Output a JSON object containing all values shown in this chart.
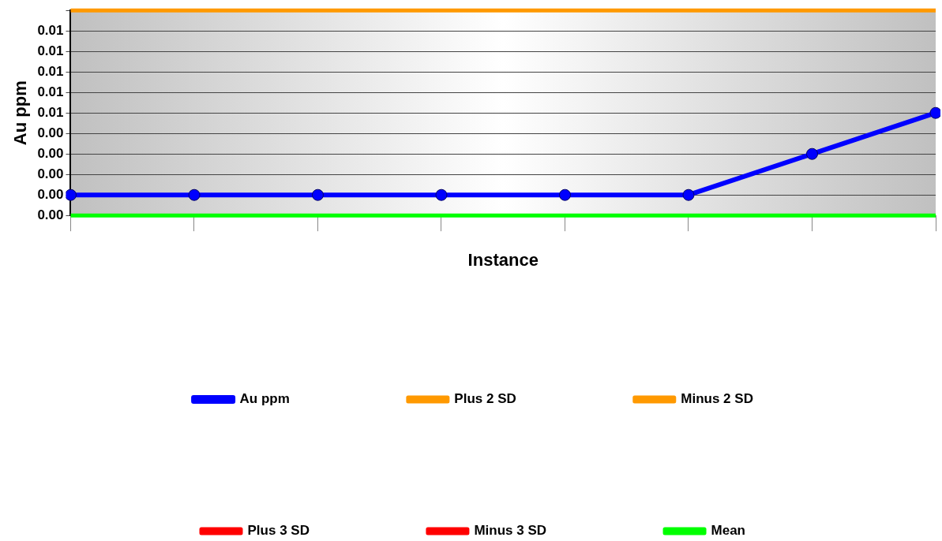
{
  "chart_data": {
    "type": "line",
    "xlabel": "Instance",
    "ylabel": "Au ppm",
    "categories": [
      null,
      null,
      null,
      null,
      null,
      null,
      null,
      null
    ],
    "series": [
      {
        "name": "Au ppm",
        "color": "#0000ff",
        "marker": "circle",
        "values": [
          0.001,
          0.001,
          0.001,
          0.001,
          0.001,
          0.001,
          0.003,
          0.005
        ]
      },
      {
        "name": "Plus 2 SD",
        "color": "#ff9900",
        "marker": "none",
        "values": [
          0.01,
          0.01,
          0.01,
          0.01,
          0.01,
          0.01,
          0.01,
          0.01
        ]
      },
      {
        "name": "Minus 2 SD",
        "color": "#ff9900",
        "marker": "none",
        "values": [
          null,
          null,
          null,
          null,
          null,
          null,
          null,
          null
        ]
      },
      {
        "name": "Plus 3 SD",
        "color": "#ff0000",
        "marker": "none",
        "values": [
          null,
          null,
          null,
          null,
          null,
          null,
          null,
          null
        ]
      },
      {
        "name": "Minus 3 SD",
        "color": "#ff0000",
        "marker": "none",
        "values": [
          null,
          null,
          null,
          null,
          null,
          null,
          null,
          null
        ]
      },
      {
        "name": "Mean",
        "color": "#00ff00",
        "marker": "none",
        "values": [
          0,
          0,
          0,
          0,
          0,
          0,
          0,
          0
        ]
      }
    ],
    "ylim": [
      0,
      0.01
    ],
    "yticks": [
      {
        "value": 0,
        "label": "0.00"
      },
      {
        "value": 0.001,
        "label": "0.00"
      },
      {
        "value": 0.002,
        "label": "0.00"
      },
      {
        "value": 0.003,
        "label": "0.00"
      },
      {
        "value": 0.004,
        "label": "0.00"
      },
      {
        "value": 0.005,
        "label": "0.01"
      },
      {
        "value": 0.006,
        "label": "0.01"
      },
      {
        "value": 0.007,
        "label": "0.01"
      },
      {
        "value": 0.008,
        "label": "0.01"
      },
      {
        "value": 0.009,
        "label": "0.01"
      },
      {
        "value": 0.01,
        "label": null
      }
    ],
    "grid": "y",
    "legend": "bottom"
  }
}
